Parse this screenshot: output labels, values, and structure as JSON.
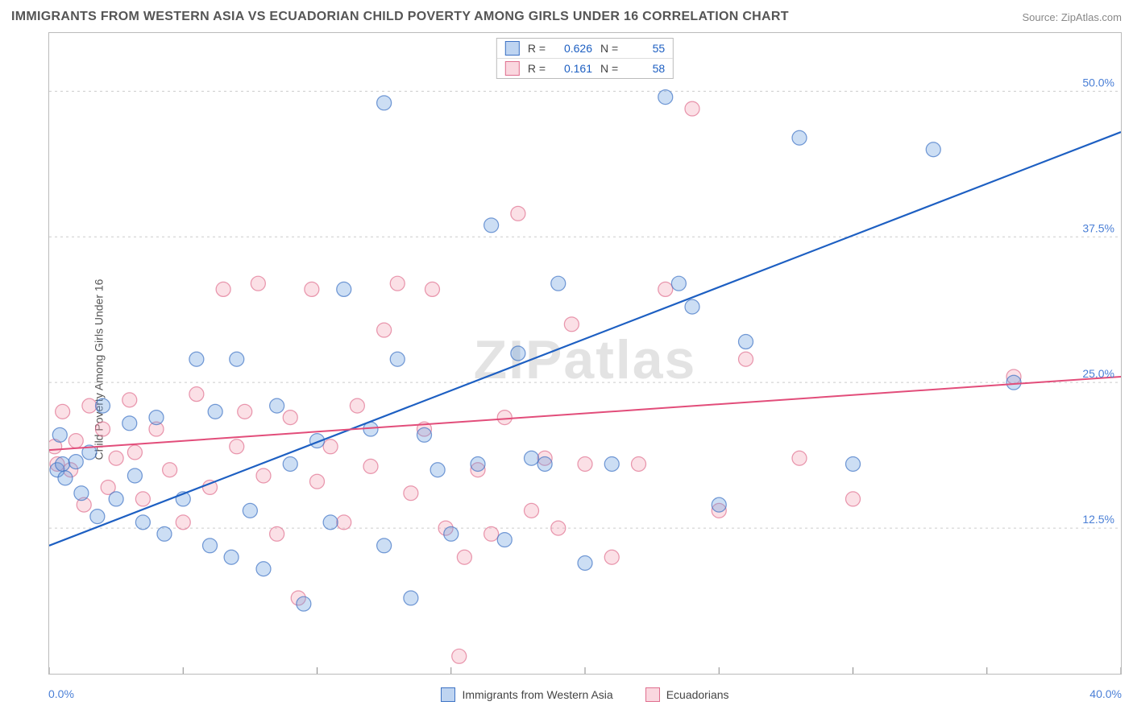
{
  "header": {
    "title": "IMMIGRANTS FROM WESTERN ASIA VS ECUADORIAN CHILD POVERTY AMONG GIRLS UNDER 16 CORRELATION CHART",
    "source_prefix": "Source: ",
    "source_name": "ZipAtlas.com"
  },
  "chart": {
    "type": "scatter",
    "ylabel": "Child Poverty Among Girls Under 16",
    "watermark": "ZIPatlas",
    "xlim": [
      0,
      40
    ],
    "ylim": [
      0,
      55
    ],
    "x_tick_labels": [
      "0.0%",
      "40.0%"
    ],
    "y_ticks": [
      {
        "v": 12.5,
        "label": "12.5%"
      },
      {
        "v": 25.0,
        "label": "25.0%"
      },
      {
        "v": 37.5,
        "label": "37.5%"
      },
      {
        "v": 50.0,
        "label": "50.0%"
      }
    ],
    "x_minor_ticks": [
      0,
      5,
      10,
      15,
      20,
      25,
      30,
      35,
      40
    ],
    "colors": {
      "blue_fill": "#6ea0e0",
      "blue_stroke": "#3d72c4",
      "blue_line": "#1d5fc2",
      "pink_fill": "#f4a6b8",
      "pink_stroke": "#e06f8f",
      "pink_line": "#e24d7a",
      "grid": "#cccccc",
      "axis_value": "#4a7fd6",
      "text": "#555555",
      "background": "#ffffff"
    },
    "marker_radius": 9,
    "legend_top": {
      "rows": [
        {
          "swatch": "blue",
          "r_label": "R =",
          "r": "0.626",
          "n_label": "N =",
          "n": "55"
        },
        {
          "swatch": "pink",
          "r_label": "R =",
          "r": "0.161",
          "n_label": "N =",
          "n": "58"
        }
      ]
    },
    "legend_bottom": [
      {
        "swatch": "blue",
        "label": "Immigrants from Western Asia"
      },
      {
        "swatch": "pink",
        "label": "Ecuadorians"
      }
    ],
    "series_blue": {
      "trend": {
        "x1": 0,
        "y1": 11.0,
        "x2": 40,
        "y2": 46.5
      },
      "points": [
        [
          0.3,
          17.5
        ],
        [
          0.5,
          18.0
        ],
        [
          0.6,
          16.8
        ],
        [
          1.0,
          18.2
        ],
        [
          1.2,
          15.5
        ],
        [
          1.5,
          19.0
        ],
        [
          1.8,
          13.5
        ],
        [
          2.0,
          23.0
        ],
        [
          2.5,
          15.0
        ],
        [
          3.0,
          21.5
        ],
        [
          3.2,
          17.0
        ],
        [
          3.5,
          13.0
        ],
        [
          4.0,
          22.0
        ],
        [
          4.3,
          12.0
        ],
        [
          5.0,
          15.0
        ],
        [
          5.5,
          27.0
        ],
        [
          6.0,
          11.0
        ],
        [
          6.2,
          22.5
        ],
        [
          6.8,
          10.0
        ],
        [
          7.0,
          27.0
        ],
        [
          7.5,
          14.0
        ],
        [
          8.0,
          9.0
        ],
        [
          8.5,
          23.0
        ],
        [
          9.0,
          18.0
        ],
        [
          9.5,
          6.0
        ],
        [
          10.0,
          20.0
        ],
        [
          10.5,
          13.0
        ],
        [
          11.0,
          33.0
        ],
        [
          12.0,
          21.0
        ],
        [
          12.5,
          11.0
        ],
        [
          12.5,
          49.0
        ],
        [
          13.0,
          27.0
        ],
        [
          13.5,
          6.5
        ],
        [
          14.0,
          20.5
        ],
        [
          14.5,
          17.5
        ],
        [
          15.0,
          12.0
        ],
        [
          16.0,
          18.0
        ],
        [
          16.5,
          38.5
        ],
        [
          17.0,
          11.5
        ],
        [
          17.5,
          27.5
        ],
        [
          18.0,
          18.5
        ],
        [
          18.5,
          18.0
        ],
        [
          19.0,
          33.5
        ],
        [
          20.0,
          9.5
        ],
        [
          21.0,
          18.0
        ],
        [
          23.0,
          49.5
        ],
        [
          23.5,
          33.5
        ],
        [
          24.0,
          31.5
        ],
        [
          25.0,
          14.5
        ],
        [
          26.0,
          28.5
        ],
        [
          28.0,
          46.0
        ],
        [
          30.0,
          18.0
        ],
        [
          33.0,
          45.0
        ],
        [
          36.0,
          25.0
        ],
        [
          0.4,
          20.5
        ]
      ]
    },
    "series_pink": {
      "trend": {
        "x1": 0,
        "y1": 19.2,
        "x2": 40,
        "y2": 25.5
      },
      "points": [
        [
          0.2,
          19.5
        ],
        [
          0.5,
          22.5
        ],
        [
          0.8,
          17.5
        ],
        [
          1.0,
          20.0
        ],
        [
          1.3,
          14.5
        ],
        [
          1.5,
          23.0
        ],
        [
          2.0,
          21.0
        ],
        [
          2.2,
          16.0
        ],
        [
          2.5,
          18.5
        ],
        [
          3.0,
          23.5
        ],
        [
          3.2,
          19.0
        ],
        [
          3.5,
          15.0
        ],
        [
          4.0,
          21.0
        ],
        [
          4.5,
          17.5
        ],
        [
          5.0,
          13.0
        ],
        [
          5.5,
          24.0
        ],
        [
          6.0,
          16.0
        ],
        [
          6.5,
          33.0
        ],
        [
          7.0,
          19.5
        ],
        [
          7.3,
          22.5
        ],
        [
          7.8,
          33.5
        ],
        [
          8.0,
          17.0
        ],
        [
          8.5,
          12.0
        ],
        [
          9.0,
          22.0
        ],
        [
          9.3,
          6.5
        ],
        [
          9.8,
          33.0
        ],
        [
          10.0,
          16.5
        ],
        [
          10.5,
          19.5
        ],
        [
          11.0,
          13.0
        ],
        [
          11.5,
          23.0
        ],
        [
          12.0,
          17.8
        ],
        [
          12.5,
          29.5
        ],
        [
          13.0,
          33.5
        ],
        [
          13.5,
          15.5
        ],
        [
          14.0,
          21.0
        ],
        [
          14.3,
          33.0
        ],
        [
          14.8,
          12.5
        ],
        [
          15.3,
          1.5
        ],
        [
          15.5,
          10.0
        ],
        [
          16.0,
          17.5
        ],
        [
          16.5,
          12.0
        ],
        [
          17.0,
          22.0
        ],
        [
          17.5,
          39.5
        ],
        [
          18.0,
          14.0
        ],
        [
          18.5,
          18.5
        ],
        [
          19.0,
          12.5
        ],
        [
          19.5,
          30.0
        ],
        [
          20.0,
          18.0
        ],
        [
          21.0,
          10.0
        ],
        [
          22.0,
          18.0
        ],
        [
          23.0,
          33.0
        ],
        [
          24.0,
          48.5
        ],
        [
          25.0,
          14.0
        ],
        [
          26.0,
          27.0
        ],
        [
          28.0,
          18.5
        ],
        [
          30.0,
          15.0
        ],
        [
          36.0,
          25.5
        ],
        [
          0.3,
          18.0
        ]
      ]
    }
  }
}
